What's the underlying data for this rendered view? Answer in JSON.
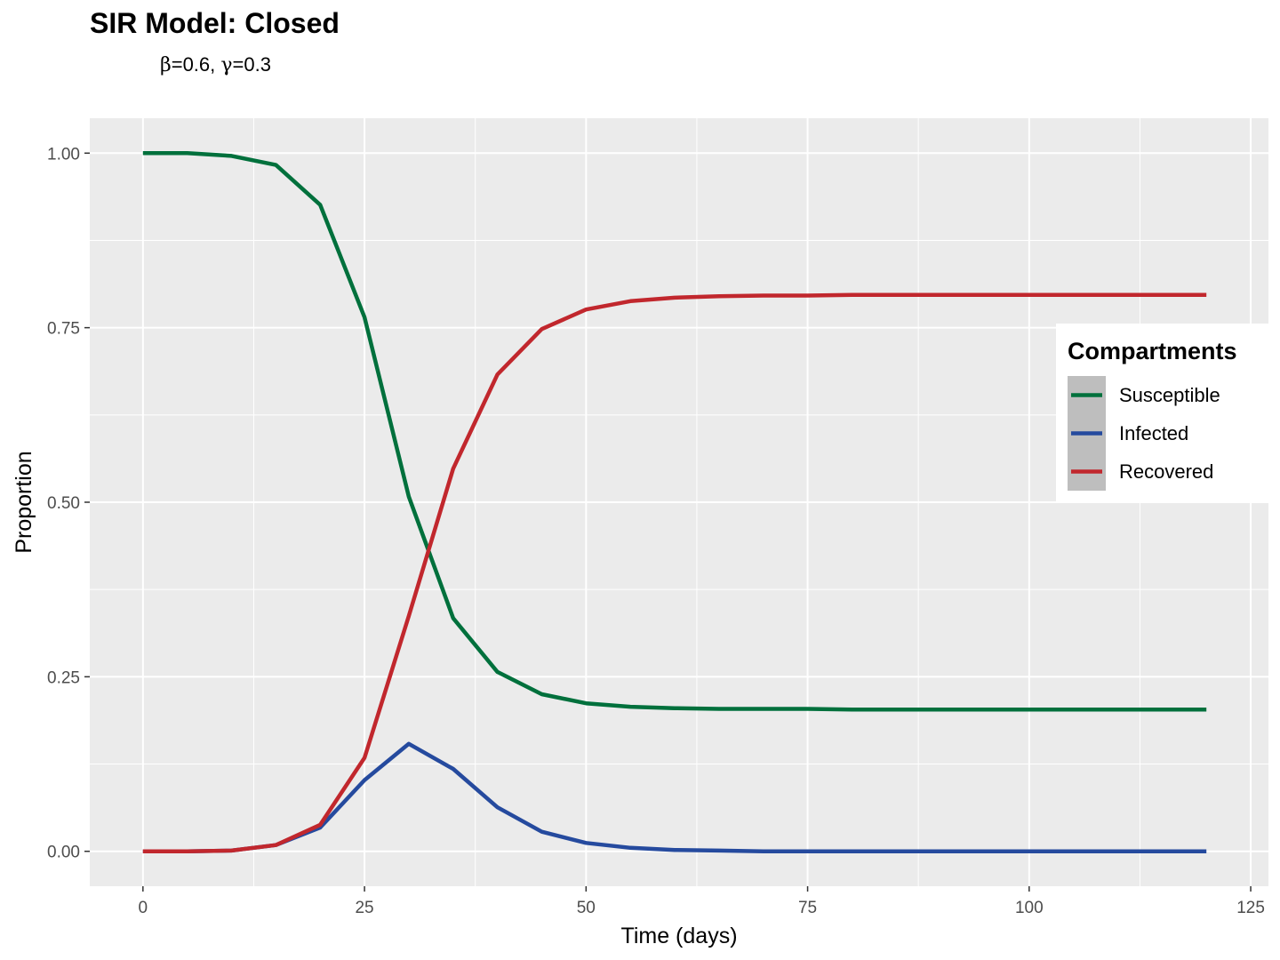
{
  "chart_data": {
    "type": "line",
    "title": "SIR Model: Closed",
    "subtitle": {
      "beta_symbol": "β",
      "beta_value": "=0.6,",
      "gamma_symbol": "γ",
      "gamma_value": "=0.3"
    },
    "xlabel": "Time (days)",
    "ylabel": "Proportion",
    "xlim": [
      -6,
      127
    ],
    "ylim": [
      -0.05,
      1.05
    ],
    "x_ticks": [
      0,
      25,
      50,
      75,
      100,
      125
    ],
    "y_ticks": [
      0.0,
      0.25,
      0.5,
      0.75,
      1.0
    ],
    "x_tick_labels": [
      "0",
      "25",
      "50",
      "75",
      "100",
      "125"
    ],
    "y_tick_labels": [
      "0.00",
      "0.25",
      "0.50",
      "0.75",
      "1.00"
    ],
    "grid": true,
    "legend": {
      "title": "Compartments",
      "position": "right",
      "entries": [
        "Susceptible",
        "Infected",
        "Recovered"
      ]
    },
    "x": [
      0,
      5,
      10,
      15,
      20,
      25,
      30,
      35,
      40,
      45,
      50,
      55,
      60,
      65,
      70,
      75,
      80,
      85,
      90,
      95,
      100,
      105,
      110,
      115,
      120
    ],
    "series": [
      {
        "name": "Susceptible",
        "color": "#00703C",
        "values": [
          1.0,
          1.0,
          0.996,
          0.983,
          0.926,
          0.765,
          0.508,
          0.334,
          0.257,
          0.225,
          0.212,
          0.207,
          0.205,
          0.204,
          0.204,
          0.204,
          0.203,
          0.203,
          0.203,
          0.203,
          0.203,
          0.203,
          0.203,
          0.203,
          0.203
        ]
      },
      {
        "name": "Infected",
        "color": "#254A9E",
        "values": [
          0.0,
          0.0,
          0.001,
          0.009,
          0.034,
          0.102,
          0.154,
          0.118,
          0.063,
          0.028,
          0.012,
          0.005,
          0.002,
          0.001,
          0.0,
          0.0,
          0.0,
          0.0,
          0.0,
          0.0,
          0.0,
          0.0,
          0.0,
          0.0,
          0.0
        ]
      },
      {
        "name": "Recovered",
        "color": "#C1272D",
        "values": [
          0.0,
          0.0,
          0.001,
          0.009,
          0.038,
          0.134,
          0.337,
          0.548,
          0.683,
          0.748,
          0.776,
          0.788,
          0.793,
          0.795,
          0.796,
          0.796,
          0.797,
          0.797,
          0.797,
          0.797,
          0.797,
          0.797,
          0.797,
          0.797,
          0.797
        ]
      }
    ]
  },
  "style": {
    "panel_background": "#EBEBEB",
    "grid_major": "#FFFFFF",
    "legend_key_background": "#BEBEBE"
  }
}
